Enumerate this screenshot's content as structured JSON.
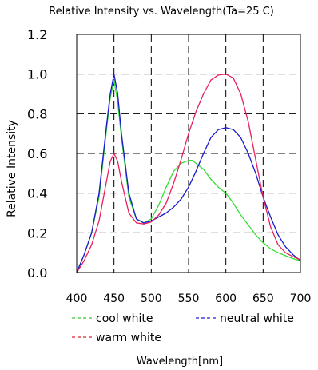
{
  "chart_data": {
    "type": "line",
    "title": "Relative Intensity vs. Wavelength(Ta=25 C)",
    "xlabel": "Wavelength[nm]",
    "ylabel": "Relative Intensity",
    "xlim": [
      400,
      700
    ],
    "ylim": [
      0,
      1.2
    ],
    "grid": true,
    "xticks": [
      "400",
      "450",
      "500",
      "550",
      "600",
      "650",
      "700"
    ],
    "yticks": [
      "0.0",
      "0.2",
      "0.4",
      "0.6",
      "0.8",
      "1.0",
      "1.2"
    ],
    "legend_position": "bottom",
    "series": [
      {
        "name": "cool white",
        "color": "#33dd33",
        "legend_color": "#33cc33",
        "x": [
          400,
          410,
          420,
          430,
          440,
          445,
          450,
          455,
          460,
          470,
          480,
          490,
          500,
          510,
          520,
          530,
          540,
          550,
          555,
          560,
          570,
          580,
          590,
          600,
          610,
          620,
          630,
          640,
          650,
          660,
          670,
          680,
          690,
          700
        ],
        "y": [
          0.0,
          0.09,
          0.2,
          0.38,
          0.72,
          0.88,
          0.97,
          0.86,
          0.68,
          0.38,
          0.27,
          0.25,
          0.27,
          0.34,
          0.43,
          0.51,
          0.55,
          0.565,
          0.565,
          0.55,
          0.52,
          0.47,
          0.43,
          0.4,
          0.35,
          0.29,
          0.24,
          0.19,
          0.15,
          0.12,
          0.1,
          0.085,
          0.07,
          0.06
        ]
      },
      {
        "name": "neutral white",
        "color": "#1a1acc",
        "legend_color": "#2222cc",
        "x": [
          400,
          410,
          420,
          430,
          440,
          445,
          450,
          455,
          460,
          470,
          480,
          490,
          500,
          510,
          520,
          530,
          540,
          550,
          560,
          570,
          580,
          590,
          600,
          610,
          620,
          630,
          640,
          650,
          660,
          670,
          680,
          690,
          700
        ],
        "y": [
          0.0,
          0.09,
          0.2,
          0.4,
          0.74,
          0.9,
          1.0,
          0.9,
          0.7,
          0.4,
          0.27,
          0.25,
          0.26,
          0.28,
          0.3,
          0.33,
          0.37,
          0.43,
          0.51,
          0.6,
          0.68,
          0.72,
          0.73,
          0.72,
          0.68,
          0.6,
          0.5,
          0.38,
          0.28,
          0.19,
          0.13,
          0.09,
          0.06
        ]
      },
      {
        "name": "warm white",
        "color": "#e8205a",
        "legend_color": "#dd2233",
        "x": [
          400,
          410,
          420,
          430,
          440,
          445,
          450,
          455,
          460,
          470,
          480,
          490,
          500,
          510,
          520,
          530,
          540,
          550,
          560,
          570,
          580,
          590,
          600,
          610,
          620,
          630,
          640,
          650,
          660,
          670,
          680,
          690,
          700
        ],
        "y": [
          0.0,
          0.06,
          0.14,
          0.26,
          0.46,
          0.56,
          0.6,
          0.56,
          0.46,
          0.3,
          0.25,
          0.245,
          0.255,
          0.29,
          0.35,
          0.45,
          0.57,
          0.7,
          0.81,
          0.9,
          0.97,
          0.995,
          1.0,
          0.98,
          0.9,
          0.76,
          0.57,
          0.38,
          0.23,
          0.14,
          0.1,
          0.08,
          0.065
        ]
      }
    ]
  }
}
